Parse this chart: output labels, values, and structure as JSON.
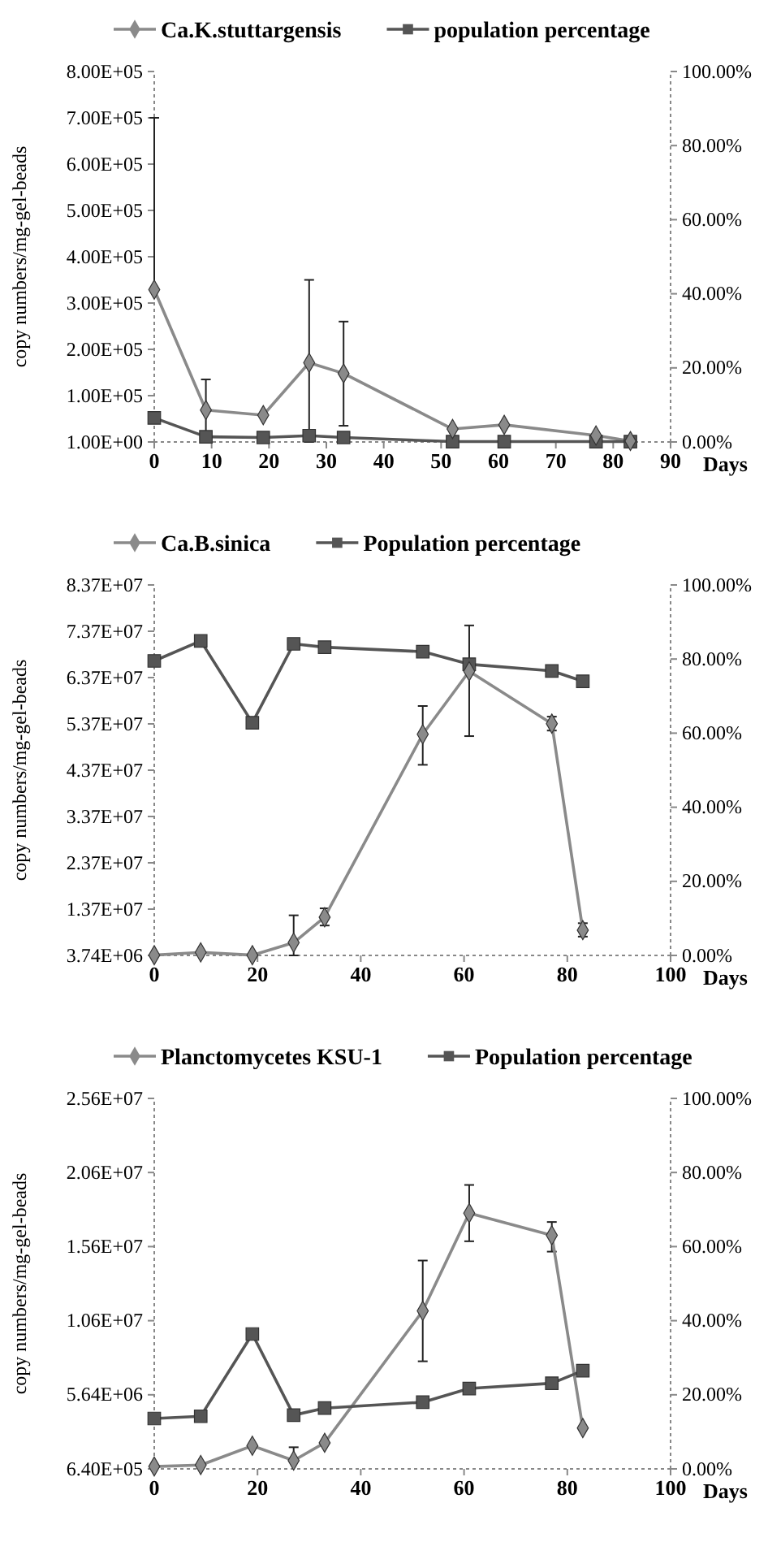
{
  "chart_data": [
    {
      "type": "line",
      "ylabel": "copy numbers/mg-gel-beads",
      "xlabel": "Days",
      "x": [
        0,
        9,
        19,
        27,
        33,
        52,
        61,
        77,
        83
      ],
      "xlim": [
        0,
        90
      ],
      "xticks": [
        0,
        10,
        20,
        30,
        40,
        50,
        60,
        70,
        80,
        90
      ],
      "ylim": [
        1,
        800000
      ],
      "yticks": [
        {
          "value": 1,
          "label": "1.00E+00"
        },
        {
          "value": 100000,
          "label": "1.00E+05"
        },
        {
          "value": 200000,
          "label": "2.00E+05"
        },
        {
          "value": 300000,
          "label": "3.00E+05"
        },
        {
          "value": 400000,
          "label": "4.00E+05"
        },
        {
          "value": 500000,
          "label": "5.00E+05"
        },
        {
          "value": 600000,
          "label": "6.00E+05"
        },
        {
          "value": 700000,
          "label": "7.00E+05"
        },
        {
          "value": 800000,
          "label": "8.00E+05"
        }
      ],
      "y2lim": [
        0,
        100
      ],
      "y2ticks": [
        {
          "value": 0,
          "label": "0.00%"
        },
        {
          "value": 20,
          "label": "20.00%"
        },
        {
          "value": 40,
          "label": "40.00%"
        },
        {
          "value": 60,
          "label": "60.00%"
        },
        {
          "value": 80,
          "label": "80.00%"
        },
        {
          "value": 100,
          "label": "100.00%"
        }
      ],
      "legend": "top",
      "grid": false,
      "series": [
        {
          "name": "Ca.K.stuttargensis",
          "color": "#8a8a8a",
          "marker": "diamond",
          "values": [
            329000,
            69000,
            58000,
            171000,
            148000,
            28000,
            37000,
            14000,
            2000
          ],
          "errors": [
            [
              329000,
              700000
            ],
            [
              3000,
              135000
            ],
            null,
            [
              1,
              350000
            ],
            [
              35000,
              260000
            ],
            null,
            null,
            null,
            null
          ]
        },
        {
          "name": "population percentage",
          "color": "#555555",
          "marker": "square",
          "axis": "y2",
          "values": [
            6.5,
            1.4,
            1.2,
            1.7,
            1.2,
            0.1,
            0.1,
            0.1,
            0.1
          ]
        }
      ]
    },
    {
      "type": "line",
      "ylabel": "copy numbers/mg-gel-beads",
      "xlabel": "Days",
      "x": [
        0,
        9,
        19,
        27,
        33,
        52,
        61,
        77,
        83
      ],
      "xlim": [
        0,
        100
      ],
      "xticks": [
        0,
        20,
        40,
        60,
        80,
        100
      ],
      "ylim": [
        3740000,
        83740000
      ],
      "yticks": [
        {
          "value": 3740000,
          "label": "3.74E+06"
        },
        {
          "value": 13740000,
          "label": "1.37E+07"
        },
        {
          "value": 23740000,
          "label": "2.37E+07"
        },
        {
          "value": 33740000,
          "label": "3.37E+07"
        },
        {
          "value": 43740000,
          "label": "4.37E+07"
        },
        {
          "value": 53740000,
          "label": "5.37E+07"
        },
        {
          "value": 63740000,
          "label": "6.37E+07"
        },
        {
          "value": 73740000,
          "label": "7.37E+07"
        },
        {
          "value": 83740000,
          "label": "8.37E+07"
        }
      ],
      "y2lim": [
        0,
        100
      ],
      "y2ticks": [
        {
          "value": 0,
          "label": "0.00%"
        },
        {
          "value": 20,
          "label": "20.00%"
        },
        {
          "value": 40,
          "label": "40.00%"
        },
        {
          "value": 60,
          "label": "60.00%"
        },
        {
          "value": 80,
          "label": "80.00%"
        },
        {
          "value": 100,
          "label": "100.00%"
        }
      ],
      "legend": "top",
      "grid": false,
      "series": [
        {
          "name": "Ca.B.sinica",
          "color": "#8a8a8a",
          "marker": "diamond",
          "values": [
            3800000,
            4400000,
            3800000,
            6500000,
            12000000,
            51500000,
            65100000,
            53800000,
            9200000
          ],
          "errors": [
            null,
            null,
            null,
            [
              3740000,
              12400000
            ],
            [
              10200000,
              13900000
            ],
            [
              44900000,
              57600000
            ],
            [
              51100000,
              75000000
            ],
            [
              52300000,
              55300000
            ],
            [
              7800000,
              10700000
            ]
          ]
        },
        {
          "name": "Population percentage",
          "color": "#555555",
          "marker": "square",
          "axis": "y2",
          "values": [
            79.5,
            84.9,
            62.8,
            84.1,
            83.2,
            82.0,
            78.6,
            76.8,
            74.0
          ]
        }
      ]
    },
    {
      "type": "line",
      "ylabel": "copy numbers/mg-gel-beads",
      "xlabel": "Days",
      "x": [
        0,
        9,
        19,
        27,
        33,
        52,
        61,
        77,
        83
      ],
      "xlim": [
        0,
        100
      ],
      "xticks": [
        0,
        20,
        40,
        60,
        80,
        100
      ],
      "ylim": [
        640000,
        25640000
      ],
      "yticks": [
        {
          "value": 640000,
          "label": "6.40E+05"
        },
        {
          "value": 5640000,
          "label": "5.64E+06"
        },
        {
          "value": 10640000,
          "label": "1.06E+07"
        },
        {
          "value": 15640000,
          "label": "1.56E+07"
        },
        {
          "value": 20640000,
          "label": "2.06E+07"
        },
        {
          "value": 25640000,
          "label": "2.56E+07"
        }
      ],
      "y2lim": [
        0,
        100
      ],
      "y2ticks": [
        {
          "value": 0,
          "label": "0.00%"
        },
        {
          "value": 20,
          "label": "20.00%"
        },
        {
          "value": 40,
          "label": "40.00%"
        },
        {
          "value": 60,
          "label": "60.00%"
        },
        {
          "value": 80,
          "label": "80.00%"
        },
        {
          "value": 100,
          "label": "100.00%"
        }
      ],
      "legend": "top",
      "grid": false,
      "series": [
        {
          "name": "Planctomycetes KSU-1",
          "color": "#8a8a8a",
          "marker": "diamond",
          "values": [
            800000,
            900000,
            2200000,
            1200000,
            2400000,
            11300000,
            17900000,
            16400000,
            3400000
          ],
          "errors": [
            null,
            null,
            null,
            [
              1200000,
              2100000
            ],
            null,
            [
              7900000,
              14700000
            ],
            [
              16000000,
              19800000
            ],
            [
              15300000,
              17300000
            ],
            null
          ]
        },
        {
          "name": "Population percentage",
          "color": "#555555",
          "marker": "square",
          "axis": "y2",
          "values": [
            13.6,
            14.2,
            36.4,
            14.5,
            16.4,
            18.0,
            21.7,
            23.1,
            26.5
          ]
        }
      ]
    }
  ]
}
